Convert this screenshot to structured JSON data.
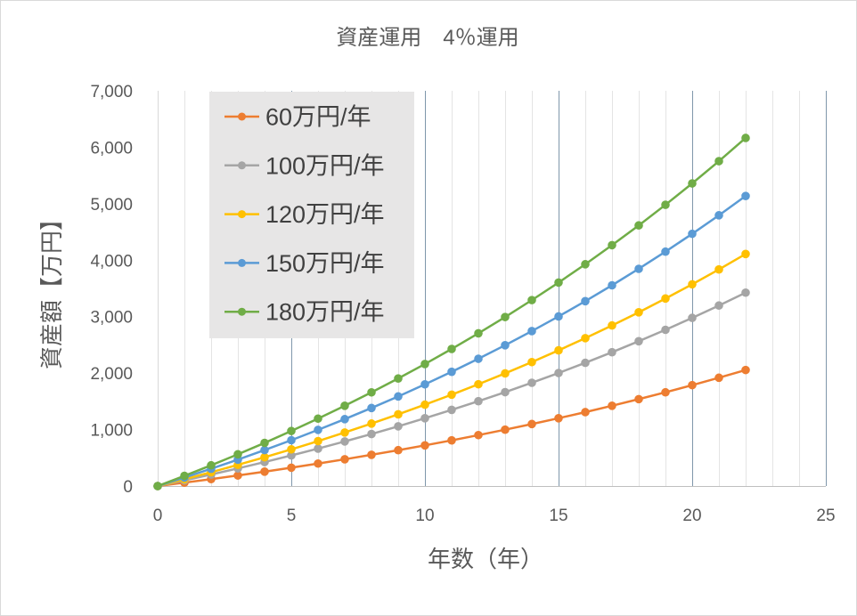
{
  "chart_data": {
    "type": "line",
    "title": "資産運用　4％運用",
    "xlabel": "年数（年）",
    "ylabel": "資産額【万円】",
    "xlim": [
      0,
      25
    ],
    "ylim": [
      0,
      7000
    ],
    "xticks": [
      0,
      5,
      10,
      15,
      20,
      25
    ],
    "xtick_labels": [
      "0",
      "5",
      "10",
      "15",
      "20",
      "25"
    ],
    "yticks": [
      0,
      1000,
      2000,
      3000,
      4000,
      5000,
      6000,
      7000
    ],
    "ytick_labels": [
      "0",
      "1,000",
      "2,000",
      "3,000",
      "4,000",
      "5,000",
      "6,000",
      "7,000"
    ],
    "grid": {
      "x_major": true,
      "x_major_step": 5,
      "x_minor": true,
      "x_minor_step": 1,
      "y": false
    },
    "legend": {
      "position": "top-left",
      "background": "#E7E6E6"
    },
    "x": [
      0,
      1,
      2,
      3,
      4,
      5,
      6,
      7,
      8,
      9,
      10,
      11,
      12,
      13,
      14,
      15,
      16,
      17,
      18,
      19,
      20,
      21,
      22
    ],
    "series": [
      {
        "name": "60万円/年",
        "color": "#ED7D31",
        "values": [
          0,
          60,
          122,
          187,
          255,
          325,
          398,
          474,
          553,
          635,
          720,
          809,
          902,
          998,
          1098,
          1201,
          1309,
          1422,
          1539,
          1660,
          1787,
          1918,
          2055
        ]
      },
      {
        "name": "100万円/年",
        "color": "#A5A5A5",
        "values": [
          0,
          100,
          204,
          312,
          425,
          542,
          663,
          790,
          921,
          1058,
          1201,
          1349,
          1503,
          1663,
          1829,
          2002,
          2182,
          2370,
          2565,
          2767,
          2978,
          3197,
          3425
        ]
      },
      {
        "name": "120万円/年",
        "color": "#FFC000",
        "values": [
          0,
          120,
          245,
          375,
          510,
          650,
          796,
          948,
          1106,
          1270,
          1441,
          1618,
          1803,
          1995,
          2195,
          2403,
          2619,
          2844,
          3077,
          3321,
          3573,
          3836,
          4110
        ]
      },
      {
        "name": "150万円/年",
        "color": "#5B9BD5",
        "values": [
          0,
          150,
          306,
          468,
          637,
          812,
          995,
          1185,
          1382,
          1587,
          1801,
          2023,
          2254,
          2494,
          2744,
          3004,
          3274,
          3555,
          3847,
          4151,
          4467,
          4795,
          5137
        ]
      },
      {
        "name": "180万円/年",
        "color": "#70AD47",
        "values": [
          0,
          180,
          367,
          562,
          764,
          975,
          1194,
          1422,
          1659,
          1905,
          2161,
          2428,
          2705,
          2993,
          3293,
          3604,
          3928,
          4266,
          4616,
          4981,
          5360,
          5754,
          6165
        ]
      }
    ]
  }
}
